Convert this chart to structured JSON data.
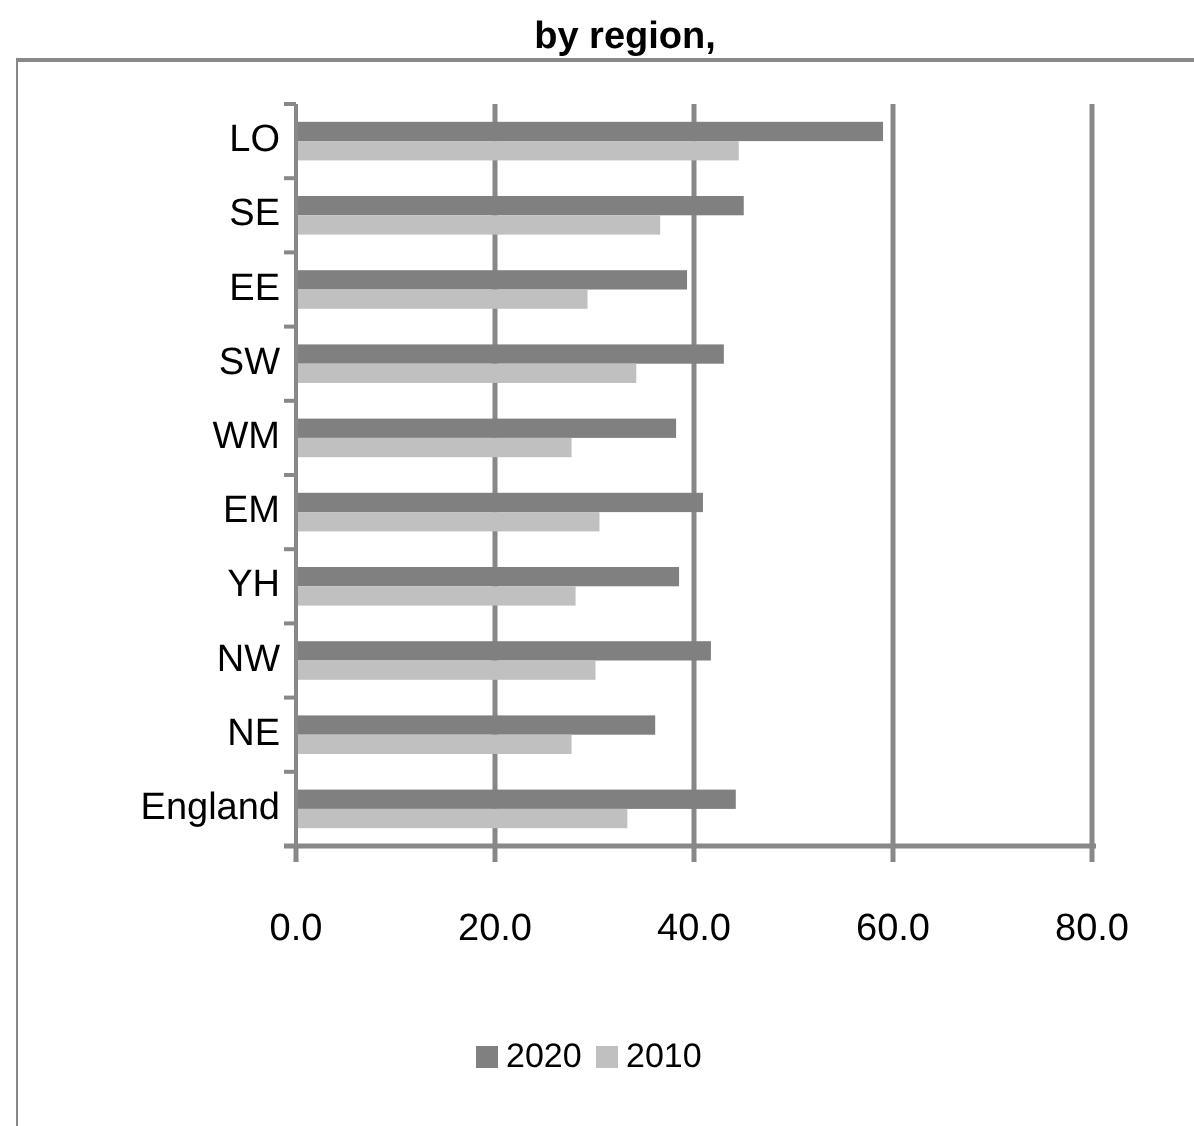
{
  "chart_data": {
    "type": "bar",
    "orientation": "horizontal",
    "title": "by region,",
    "categories": [
      "LO",
      "SE",
      "EE",
      "SW",
      "WM",
      "EM",
      "YH",
      "NW",
      "NE",
      "England"
    ],
    "series": [
      {
        "name": "2020",
        "color": "#808080",
        "values": [
          59.0,
          45.0,
          39.3,
          43.0,
          38.2,
          40.9,
          38.5,
          41.7,
          36.1,
          44.2
        ]
      },
      {
        "name": "2010",
        "color": "#c0c0c0",
        "values": [
          44.5,
          36.6,
          29.3,
          34.2,
          27.7,
          30.5,
          28.1,
          30.1,
          27.7,
          33.3
        ]
      }
    ],
    "xlim": [
      0,
      80
    ],
    "xticks": [
      {
        "value": 0,
        "label": "0.0"
      },
      {
        "value": 20,
        "label": "20.0"
      },
      {
        "value": 40,
        "label": "40.0"
      },
      {
        "value": 60,
        "label": "60.0"
      },
      {
        "value": 80,
        "label": "80.0"
      }
    ],
    "grid": "x",
    "legend": "bottom"
  }
}
